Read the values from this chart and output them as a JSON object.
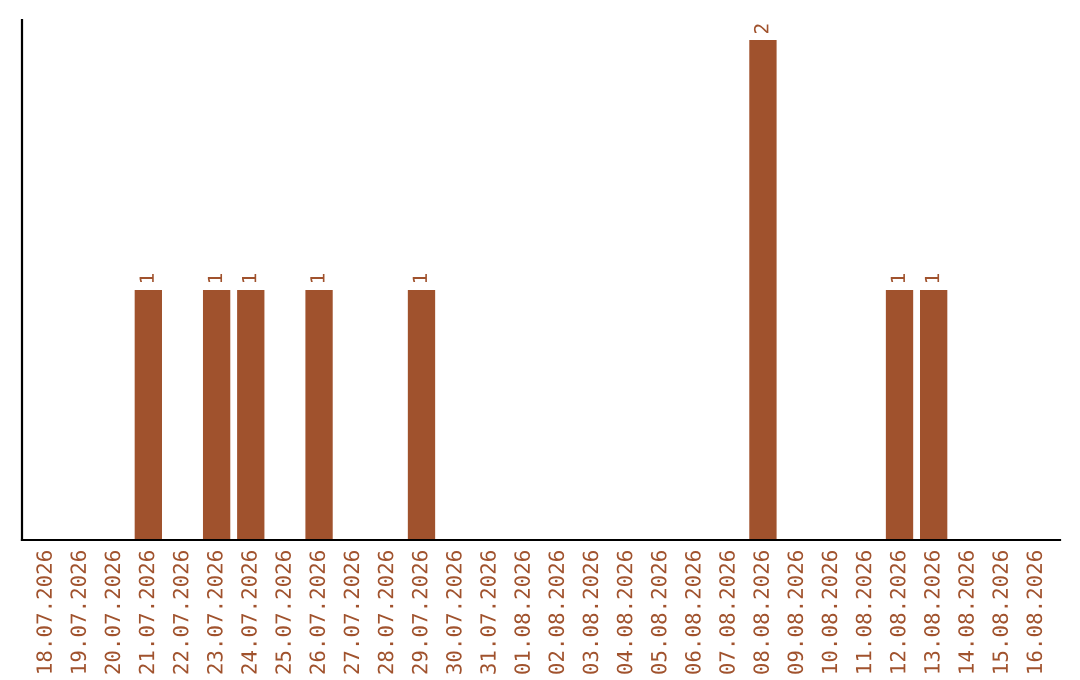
{
  "chart_data": {
    "type": "bar",
    "categories": [
      "18.07.2026",
      "19.07.2026",
      "20.07.2026",
      "21.07.2026",
      "22.07.2026",
      "23.07.2026",
      "24.07.2026",
      "25.07.2026",
      "26.07.2026",
      "27.07.2026",
      "28.07.2026",
      "29.07.2026",
      "30.07.2026",
      "31.07.2026",
      "01.08.2026",
      "02.08.2026",
      "03.08.2026",
      "04.08.2026",
      "05.08.2026",
      "06.08.2026",
      "07.08.2026",
      "08.08.2026",
      "09.08.2026",
      "10.08.2026",
      "11.08.2026",
      "12.08.2026",
      "13.08.2026",
      "14.08.2026",
      "15.08.2026",
      "16.08.2026"
    ],
    "values": [
      0,
      0,
      0,
      1,
      0,
      1,
      1,
      0,
      1,
      0,
      0,
      1,
      0,
      0,
      0,
      0,
      0,
      0,
      0,
      0,
      0,
      2,
      0,
      0,
      0,
      1,
      1,
      0,
      0,
      0
    ],
    "value_labels": [
      null,
      null,
      null,
      "1",
      null,
      "1",
      "1",
      null,
      "1",
      null,
      null,
      "1",
      null,
      null,
      null,
      null,
      null,
      null,
      null,
      null,
      null,
      "2",
      null,
      null,
      null,
      "1",
      "1",
      null,
      null,
      null
    ],
    "color": "#a0522d",
    "tick_labels": "x",
    "grid": false,
    "legend": false
  }
}
